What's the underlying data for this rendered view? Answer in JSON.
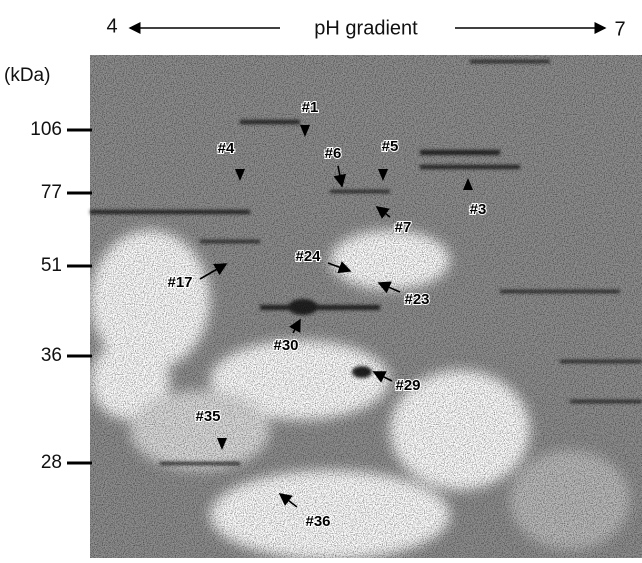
{
  "figure": {
    "ph_axis": {
      "start": "4",
      "label": "pH gradient",
      "end": "7"
    },
    "mw_axis": {
      "unit": "(kDa)",
      "markers": [
        "106",
        "77",
        "51",
        "36",
        "28"
      ]
    },
    "spots": [
      "#1",
      "#4",
      "#6",
      "#5",
      "#3",
      "#7",
      "#24",
      "#17",
      "#23",
      "#30",
      "#29",
      "#35",
      "#36"
    ]
  }
}
